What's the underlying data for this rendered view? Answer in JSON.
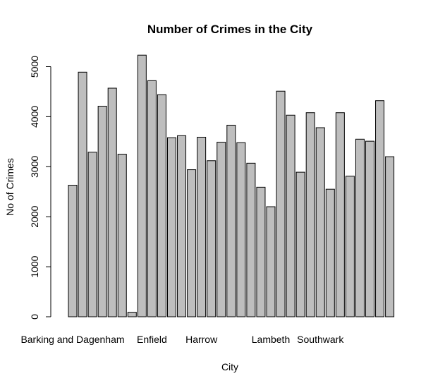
{
  "chart_data": {
    "type": "bar",
    "title": "Number of Crimes in the City",
    "xlabel": "City",
    "ylabel": "No of Crimes",
    "ylim": [
      0,
      5300
    ],
    "yticks": [
      0,
      1000,
      2000,
      3000,
      4000,
      5000
    ],
    "x_tick_labels": [
      {
        "index": 0,
        "label": "Barking and Dagenham"
      },
      {
        "index": 8,
        "label": "Enfield"
      },
      {
        "index": 13,
        "label": "Harrow"
      },
      {
        "index": 20,
        "label": "Lambeth"
      },
      {
        "index": 25,
        "label": "Southwark"
      }
    ],
    "values": [
      2630,
      4890,
      3290,
      4210,
      4570,
      3250,
      90,
      5230,
      4720,
      4440,
      3580,
      3620,
      2940,
      3590,
      3120,
      3490,
      3830,
      3480,
      3070,
      2590,
      2200,
      4510,
      4030,
      2890,
      4080,
      3780,
      2550,
      4080,
      2810,
      3550,
      3510,
      4320,
      3200
    ],
    "grid": false
  }
}
